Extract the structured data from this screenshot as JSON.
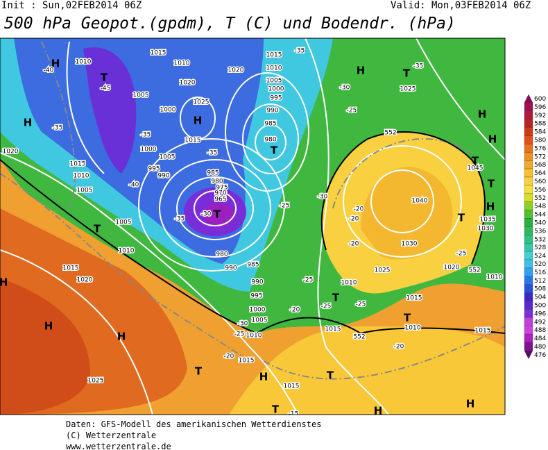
{
  "header": {
    "init": "Init : Sun,02FEB2014 06Z",
    "valid": "Valid: Mon,03FEB2014 06Z",
    "title": "500 hPa Geopot.(gpdm), T (C) und Bodendr. (hPa)"
  },
  "legend": {
    "values": [
      600,
      596,
      592,
      588,
      584,
      580,
      576,
      572,
      568,
      564,
      560,
      556,
      552,
      548,
      544,
      540,
      536,
      532,
      528,
      524,
      520,
      516,
      512,
      508,
      504,
      500,
      496,
      492,
      488,
      484,
      480,
      476
    ],
    "colors": [
      "#900060",
      "#a01050",
      "#b01840",
      "#c02020",
      "#d03818",
      "#e05018",
      "#e87020",
      "#f09020",
      "#f0a828",
      "#f8c030",
      "#f8d040",
      "#f0e040",
      "#d8e020",
      "#90d020",
      "#50c030",
      "#28b040",
      "#30b860",
      "#30c080",
      "#30c8a8",
      "#40d0d0",
      "#40c0e8",
      "#30a0f0",
      "#2878e8",
      "#2850d8",
      "#3c28c8",
      "#5a28d0",
      "#7a30d8",
      "#c040d8",
      "#d040e0",
      "#b020c0",
      "#7a1490",
      "#5a0a6a"
    ]
  },
  "map_labels": [
    "H",
    "T",
    "-40",
    "1010",
    "-45",
    "1005",
    "1000",
    "1025",
    "H",
    "-35",
    "H",
    "1020",
    "-35",
    "1015",
    "1000",
    "1005",
    "995",
    "990",
    "1015",
    "1010",
    "1005",
    "-40",
    "T",
    "1005",
    "1010",
    "1015",
    "1020",
    "H",
    "H",
    "H",
    "1025",
    "985",
    "980",
    "975",
    "970",
    "965",
    "-35",
    "-30",
    "T",
    "980",
    "990",
    "985",
    "990",
    "995",
    "1000",
    "1005",
    "-30",
    "-25",
    "1010",
    "-20",
    "1015",
    "T",
    "H",
    "T",
    "1015",
    "T",
    "H",
    "H",
    "1010",
    "1015",
    "1020",
    "1020",
    "1015",
    "-35",
    "1010",
    "1005",
    "1000",
    "995",
    "990",
    "985",
    "980",
    "T",
    "-35",
    "-25",
    "-30",
    "-20",
    "-20",
    "-20",
    "552",
    "H",
    "T",
    "-35",
    "1025",
    "-30",
    "-25",
    "H",
    "H",
    "T",
    "1045",
    "T",
    "H",
    "1040",
    "1035",
    "1030",
    "1030",
    "T",
    "-25",
    "1025",
    "1020",
    "552",
    "1010",
    "1010",
    "T",
    "-25",
    "-25",
    "-25",
    "1015",
    "T",
    "1010",
    "-20",
    "1015",
    "552",
    "-20",
    "1015",
    "-15"
  ],
  "footer": [
    "Daten: GFS-Modell des amerikanischen Wetterdienstes",
    "(C) Wetterzentrale",
    "www.wetterzentrale.de"
  ]
}
